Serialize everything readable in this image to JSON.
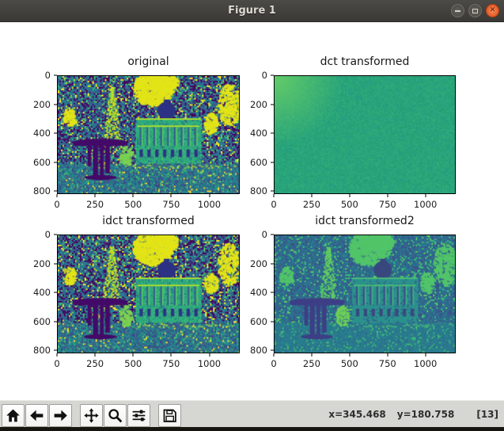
{
  "window": {
    "title": "Figure 1",
    "controls": {
      "minimize": "minimize",
      "maximize": "maximize",
      "close": "close"
    }
  },
  "colors": {
    "titlebar": "#3e3d39",
    "close_button": "#dd4814",
    "toolbar": "#d6d6d3",
    "figure_bg": "#ffffff"
  },
  "subplots": [
    {
      "title": "original",
      "palette": "original",
      "kind": "scene",
      "xticks": [
        "0",
        "250",
        "500",
        "750",
        "1000"
      ],
      "yticks": [
        "0",
        "200",
        "400",
        "600",
        "800"
      ]
    },
    {
      "title": "dct transformed",
      "palette": "dct",
      "kind": "dct",
      "xticks": [
        "0",
        "250",
        "500",
        "750",
        "1000"
      ],
      "yticks": [
        "0",
        "200",
        "400",
        "600",
        "800"
      ]
    },
    {
      "title": "idct transformed",
      "palette": "original",
      "kind": "scene",
      "xticks": [
        "0",
        "250",
        "500",
        "750",
        "1000"
      ],
      "yticks": [
        "0",
        "200",
        "400",
        "600",
        "800"
      ]
    },
    {
      "title": "idct transformed2",
      "palette": "smooth",
      "kind": "scene",
      "xticks": [
        "0",
        "250",
        "500",
        "750",
        "1000"
      ],
      "yticks": [
        "0",
        "200",
        "400",
        "600",
        "800"
      ]
    }
  ],
  "palettes": {
    "original": {
      "trees": [
        "#46085c",
        "#3b518b",
        "#2c728e",
        "#24868e",
        "#450d67",
        "#31688e"
      ],
      "speckles": [
        "#5ec962",
        "#c8e020",
        "#fde725",
        "#35b779"
      ],
      "speckleChance": 0.16,
      "sky": "#e2e418",
      "cone": "#c5e021",
      "coneAlt": "#7ad151",
      "building": "#2fb47c",
      "buildingDark": "#26828e",
      "colDark": "#33638d",
      "colLight": "#5ec962",
      "dark": "#2d3184",
      "trim": "#aadc32",
      "fountain": "#430a68",
      "ground": [
        "#2c728e",
        "#21918c",
        "#287d8e",
        "#3b518b"
      ],
      "groundSpeckles": [
        "#5ec962",
        "#fde725",
        "#35b779"
      ],
      "groundSpeckleChance": 0.12
    },
    "smooth": {
      "trees": [
        "#33638d",
        "#3b528b",
        "#2c728e",
        "#31688e",
        "#27808e",
        "#2f6a8d"
      ],
      "speckles": [
        "#35b779",
        "#5ec962",
        "#40bd72"
      ],
      "speckleChance": 0.14,
      "sky": "#52c569",
      "cone": "#5ec962",
      "coneAlt": "#6ece58",
      "building": "#2b938d",
      "buildingDark": "#31688e",
      "colDark": "#3b528b",
      "colLight": "#46b481",
      "dark": "#39477f",
      "trim": "#49b975",
      "fountain": "#3d3e86",
      "ground": [
        "#2c728e",
        "#287d8e",
        "#26828e"
      ],
      "groundSpeckles": [
        "#35b779",
        "#49c16d"
      ],
      "groundSpeckleChance": 0.1
    },
    "dct": {
      "base": "#29a47b",
      "noise": [
        "#249a72",
        "#2eae80",
        "#32b377",
        "#21958a",
        "#27a06f"
      ],
      "corner": "#5fc96a"
    }
  },
  "toolbar": {
    "buttons": [
      {
        "name": "home"
      },
      {
        "name": "back"
      },
      {
        "name": "forward"
      },
      {
        "name": "pan"
      },
      {
        "name": "zoom"
      },
      {
        "name": "configure-subplots"
      },
      {
        "name": "save"
      }
    ],
    "status": {
      "x": "x=345.468",
      "y": "y=180.758",
      "counter": "[13]"
    }
  }
}
